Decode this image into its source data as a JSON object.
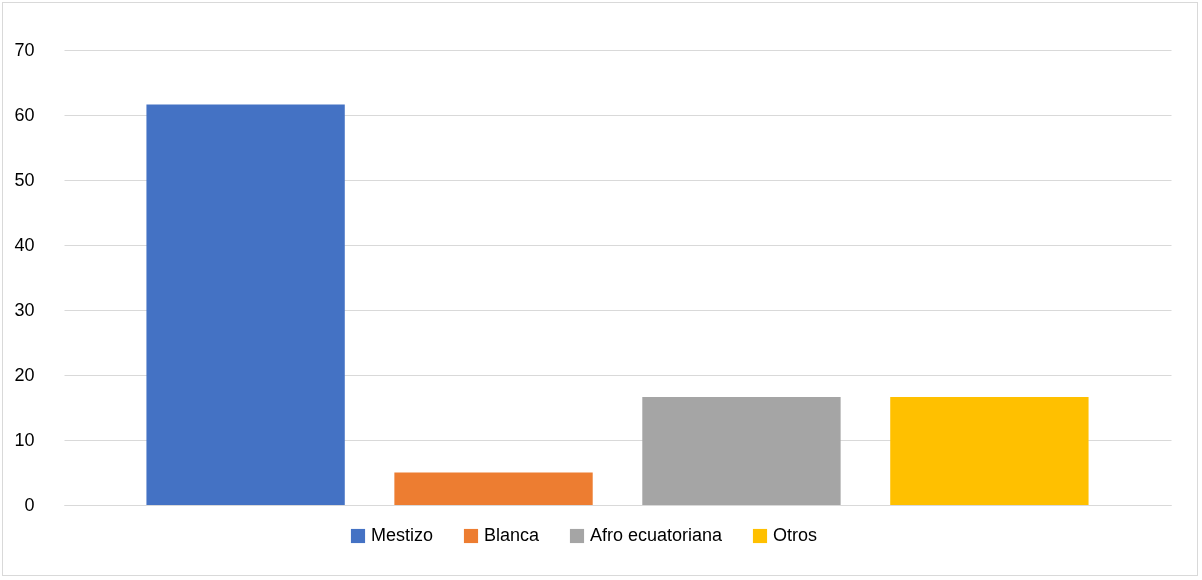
{
  "chart_data": {
    "type": "bar",
    "categories": [
      null
    ],
    "series": [
      {
        "name": "Mestizo",
        "color": "#4472c4",
        "values": [
          61.6
        ]
      },
      {
        "name": "Blanca",
        "color": "#ed7d31",
        "values": [
          5.0
        ]
      },
      {
        "name": "Afro ecuatoriana",
        "color": "#a5a5a5",
        "values": [
          16.6
        ]
      },
      {
        "name": "Otros",
        "color": "#ffc000",
        "values": [
          16.6
        ]
      }
    ],
    "ylim": [
      0,
      70
    ],
    "yticks": [
      0,
      10,
      20,
      30,
      40,
      50,
      60,
      70
    ],
    "grid": "y",
    "legend": "bottom",
    "tick_labels": "y"
  }
}
